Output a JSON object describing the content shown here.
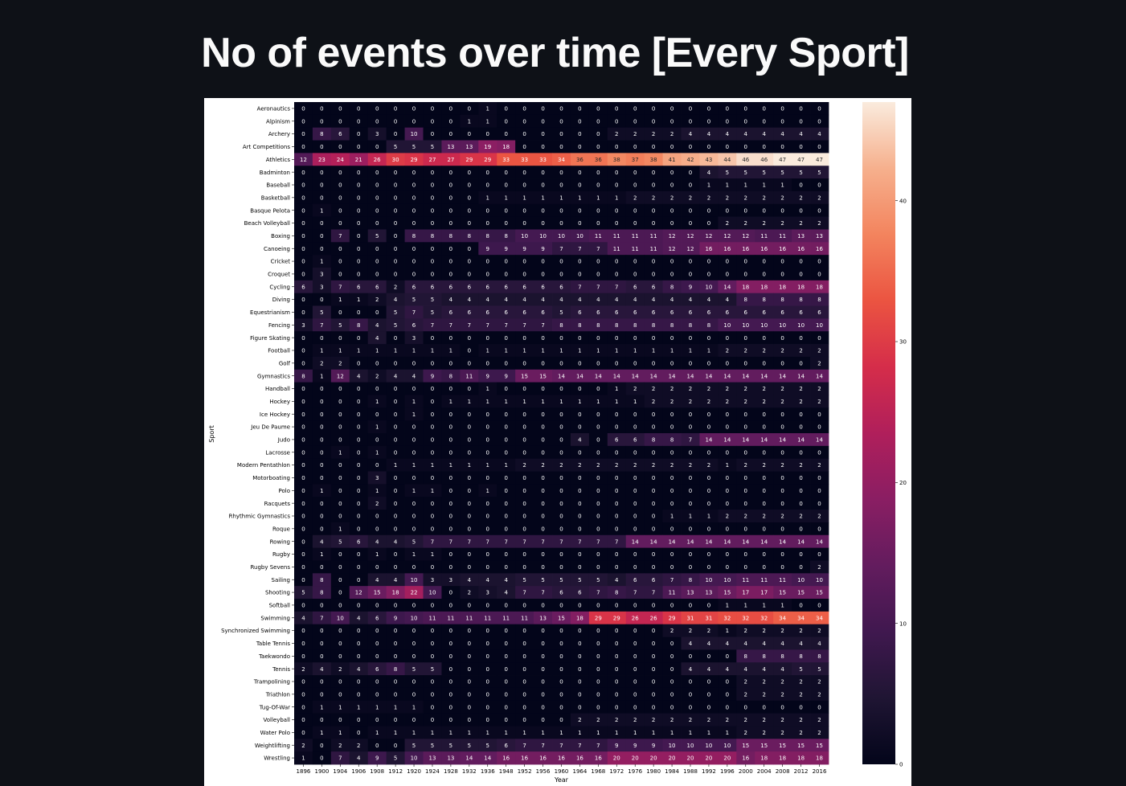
{
  "page": {
    "title": "No of events over time [Every Sport]"
  },
  "chart_data": {
    "type": "heatmap",
    "title": "",
    "xlabel": "Year",
    "ylabel": "Sport",
    "colormap": "rocket",
    "vmin": 0,
    "vmax": 47,
    "colorbar_ticks": [
      0,
      10,
      20,
      30,
      40
    ],
    "annotate": true,
    "x": [
      "1896",
      "1900",
      "1904",
      "1906",
      "1908",
      "1912",
      "1920",
      "1924",
      "1928",
      "1932",
      "1936",
      "1948",
      "1952",
      "1956",
      "1960",
      "1964",
      "1968",
      "1972",
      "1976",
      "1980",
      "1984",
      "1988",
      "1992",
      "1996",
      "2000",
      "2004",
      "2008",
      "2012",
      "2016"
    ],
    "y": [
      "Aeronautics",
      "Alpinism",
      "Archery",
      "Art Competitions",
      "Athletics",
      "Badminton",
      "Baseball",
      "Basketball",
      "Basque Pelota",
      "Beach Volleyball",
      "Boxing",
      "Canoeing",
      "Cricket",
      "Croquet",
      "Cycling",
      "Diving",
      "Equestrianism",
      "Fencing",
      "Figure Skating",
      "Football",
      "Golf",
      "Gymnastics",
      "Handball",
      "Hockey",
      "Ice Hockey",
      "Jeu De Paume",
      "Judo",
      "Lacrosse",
      "Modern Pentathlon",
      "Motorboating",
      "Polo",
      "Racquets",
      "Rhythmic Gymnastics",
      "Roque",
      "Rowing",
      "Rugby",
      "Rugby Sevens",
      "Sailing",
      "Shooting",
      "Softball",
      "Swimming",
      "Synchronized Swimming",
      "Table Tennis",
      "Taekwondo",
      "Tennis",
      "Trampolining",
      "Triathlon",
      "Tug-Of-War",
      "Volleyball",
      "Water Polo",
      "Weightlifting",
      "Wrestling"
    ],
    "values": [
      [
        0,
        0,
        0,
        0,
        0,
        0,
        0,
        0,
        0,
        0,
        1,
        0,
        0,
        0,
        0,
        0,
        0,
        0,
        0,
        0,
        0,
        0,
        0,
        0,
        0,
        0,
        0,
        0,
        0
      ],
      [
        0,
        0,
        0,
        0,
        0,
        0,
        0,
        0,
        0,
        1,
        1,
        0,
        0,
        0,
        0,
        0,
        0,
        0,
        0,
        0,
        0,
        0,
        0,
        0,
        0,
        0,
        0,
        0,
        0
      ],
      [
        0,
        8,
        6,
        0,
        3,
        0,
        10,
        0,
        0,
        0,
        0,
        0,
        0,
        0,
        0,
        0,
        0,
        2,
        2,
        2,
        2,
        4,
        4,
        4,
        4,
        4,
        4,
        4,
        4
      ],
      [
        0,
        0,
        0,
        0,
        0,
        5,
        5,
        5,
        13,
        13,
        19,
        18,
        0,
        0,
        0,
        0,
        0,
        0,
        0,
        0,
        0,
        0,
        0,
        0,
        0,
        0,
        0,
        0,
        0
      ],
      [
        12,
        23,
        24,
        21,
        26,
        30,
        29,
        27,
        27,
        29,
        29,
        33,
        33,
        33,
        34,
        36,
        36,
        38,
        37,
        38,
        41,
        42,
        43,
        44,
        46,
        46,
        47,
        47,
        47
      ],
      [
        0,
        0,
        0,
        0,
        0,
        0,
        0,
        0,
        0,
        0,
        0,
        0,
        0,
        0,
        0,
        0,
        0,
        0,
        0,
        0,
        0,
        0,
        4,
        5,
        5,
        5,
        5,
        5,
        5
      ],
      [
        0,
        0,
        0,
        0,
        0,
        0,
        0,
        0,
        0,
        0,
        0,
        0,
        0,
        0,
        0,
        0,
        0,
        0,
        0,
        0,
        0,
        0,
        1,
        1,
        1,
        1,
        1,
        0,
        0
      ],
      [
        0,
        0,
        0,
        0,
        0,
        0,
        0,
        0,
        0,
        0,
        1,
        1,
        1,
        1,
        1,
        1,
        1,
        1,
        2,
        2,
        2,
        2,
        2,
        2,
        2,
        2,
        2,
        2,
        2
      ],
      [
        0,
        1,
        0,
        0,
        0,
        0,
        0,
        0,
        0,
        0,
        0,
        0,
        0,
        0,
        0,
        0,
        0,
        0,
        0,
        0,
        0,
        0,
        0,
        0,
        0,
        0,
        0,
        0,
        0
      ],
      [
        0,
        0,
        0,
        0,
        0,
        0,
        0,
        0,
        0,
        0,
        0,
        0,
        0,
        0,
        0,
        0,
        0,
        0,
        0,
        0,
        0,
        0,
        0,
        2,
        2,
        2,
        2,
        2,
        2
      ],
      [
        0,
        0,
        7,
        0,
        5,
        0,
        8,
        8,
        8,
        8,
        8,
        8,
        10,
        10,
        10,
        10,
        11,
        11,
        11,
        11,
        12,
        12,
        12,
        12,
        12,
        11,
        11,
        13,
        13
      ],
      [
        0,
        0,
        0,
        0,
        0,
        0,
        0,
        0,
        0,
        0,
        9,
        9,
        9,
        9,
        7,
        7,
        7,
        11,
        11,
        11,
        12,
        12,
        16,
        16,
        16,
        16,
        16,
        16,
        16
      ],
      [
        0,
        1,
        0,
        0,
        0,
        0,
        0,
        0,
        0,
        0,
        0,
        0,
        0,
        0,
        0,
        0,
        0,
        0,
        0,
        0,
        0,
        0,
        0,
        0,
        0,
        0,
        0,
        0,
        0
      ],
      [
        0,
        3,
        0,
        0,
        0,
        0,
        0,
        0,
        0,
        0,
        0,
        0,
        0,
        0,
        0,
        0,
        0,
        0,
        0,
        0,
        0,
        0,
        0,
        0,
        0,
        0,
        0,
        0,
        0
      ],
      [
        6,
        3,
        7,
        6,
        6,
        2,
        6,
        6,
        6,
        6,
        6,
        6,
        6,
        6,
        6,
        7,
        7,
        7,
        6,
        6,
        8,
        9,
        10,
        14,
        18,
        18,
        18,
        18,
        18
      ],
      [
        0,
        0,
        1,
        1,
        2,
        4,
        5,
        5,
        4,
        4,
        4,
        4,
        4,
        4,
        4,
        4,
        4,
        4,
        4,
        4,
        4,
        4,
        4,
        4,
        8,
        8,
        8,
        8,
        8
      ],
      [
        0,
        5,
        0,
        0,
        0,
        5,
        7,
        5,
        6,
        6,
        6,
        6,
        6,
        6,
        5,
        6,
        6,
        6,
        6,
        6,
        6,
        6,
        6,
        6,
        6,
        6,
        6,
        6,
        6
      ],
      [
        3,
        7,
        5,
        8,
        4,
        5,
        6,
        7,
        7,
        7,
        7,
        7,
        7,
        7,
        8,
        8,
        8,
        8,
        8,
        8,
        8,
        8,
        8,
        10,
        10,
        10,
        10,
        10,
        10
      ],
      [
        0,
        0,
        0,
        0,
        4,
        0,
        3,
        0,
        0,
        0,
        0,
        0,
        0,
        0,
        0,
        0,
        0,
        0,
        0,
        0,
        0,
        0,
        0,
        0,
        0,
        0,
        0,
        0,
        0
      ],
      [
        0,
        1,
        1,
        1,
        1,
        1,
        1,
        1,
        1,
        0,
        1,
        1,
        1,
        1,
        1,
        1,
        1,
        1,
        1,
        1,
        1,
        1,
        1,
        2,
        2,
        2,
        2,
        2,
        2
      ],
      [
        0,
        2,
        2,
        0,
        0,
        0,
        0,
        0,
        0,
        0,
        0,
        0,
        0,
        0,
        0,
        0,
        0,
        0,
        0,
        0,
        0,
        0,
        0,
        0,
        0,
        0,
        0,
        0,
        2
      ],
      [
        8,
        1,
        12,
        4,
        2,
        4,
        4,
        9,
        8,
        11,
        9,
        9,
        15,
        15,
        14,
        14,
        14,
        14,
        14,
        14,
        14,
        14,
        14,
        14,
        14,
        14,
        14,
        14,
        14
      ],
      [
        0,
        0,
        0,
        0,
        0,
        0,
        0,
        0,
        0,
        0,
        1,
        0,
        0,
        0,
        0,
        0,
        0,
        1,
        2,
        2,
        2,
        2,
        2,
        2,
        2,
        2,
        2,
        2,
        2
      ],
      [
        0,
        0,
        0,
        0,
        1,
        0,
        1,
        0,
        1,
        1,
        1,
        1,
        1,
        1,
        1,
        1,
        1,
        1,
        1,
        2,
        2,
        2,
        2,
        2,
        2,
        2,
        2,
        2,
        2
      ],
      [
        0,
        0,
        0,
        0,
        0,
        0,
        1,
        0,
        0,
        0,
        0,
        0,
        0,
        0,
        0,
        0,
        0,
        0,
        0,
        0,
        0,
        0,
        0,
        0,
        0,
        0,
        0,
        0,
        0
      ],
      [
        0,
        0,
        0,
        0,
        1,
        0,
        0,
        0,
        0,
        0,
        0,
        0,
        0,
        0,
        0,
        0,
        0,
        0,
        0,
        0,
        0,
        0,
        0,
        0,
        0,
        0,
        0,
        0,
        0
      ],
      [
        0,
        0,
        0,
        0,
        0,
        0,
        0,
        0,
        0,
        0,
        0,
        0,
        0,
        0,
        0,
        4,
        0,
        6,
        6,
        8,
        8,
        7,
        14,
        14,
        14,
        14,
        14,
        14,
        14
      ],
      [
        0,
        0,
        1,
        0,
        1,
        0,
        0,
        0,
        0,
        0,
        0,
        0,
        0,
        0,
        0,
        0,
        0,
        0,
        0,
        0,
        0,
        0,
        0,
        0,
        0,
        0,
        0,
        0,
        0
      ],
      [
        0,
        0,
        0,
        0,
        0,
        1,
        1,
        1,
        1,
        1,
        1,
        1,
        2,
        2,
        2,
        2,
        2,
        2,
        2,
        2,
        2,
        2,
        2,
        1,
        2,
        2,
        2,
        2,
        2
      ],
      [
        0,
        0,
        0,
        0,
        3,
        0,
        0,
        0,
        0,
        0,
        0,
        0,
        0,
        0,
        0,
        0,
        0,
        0,
        0,
        0,
        0,
        0,
        0,
        0,
        0,
        0,
        0,
        0,
        0
      ],
      [
        0,
        1,
        0,
        0,
        1,
        0,
        1,
        1,
        0,
        0,
        1,
        0,
        0,
        0,
        0,
        0,
        0,
        0,
        0,
        0,
        0,
        0,
        0,
        0,
        0,
        0,
        0,
        0,
        0
      ],
      [
        0,
        0,
        0,
        0,
        2,
        0,
        0,
        0,
        0,
        0,
        0,
        0,
        0,
        0,
        0,
        0,
        0,
        0,
        0,
        0,
        0,
        0,
        0,
        0,
        0,
        0,
        0,
        0,
        0
      ],
      [
        0,
        0,
        0,
        0,
        0,
        0,
        0,
        0,
        0,
        0,
        0,
        0,
        0,
        0,
        0,
        0,
        0,
        0,
        0,
        0,
        1,
        1,
        1,
        2,
        2,
        2,
        2,
        2,
        2
      ],
      [
        0,
        0,
        1,
        0,
        0,
        0,
        0,
        0,
        0,
        0,
        0,
        0,
        0,
        0,
        0,
        0,
        0,
        0,
        0,
        0,
        0,
        0,
        0,
        0,
        0,
        0,
        0,
        0,
        0
      ],
      [
        0,
        4,
        5,
        6,
        4,
        4,
        5,
        7,
        7,
        7,
        7,
        7,
        7,
        7,
        7,
        7,
        7,
        7,
        14,
        14,
        14,
        14,
        14,
        14,
        14,
        14,
        14,
        14,
        14
      ],
      [
        0,
        1,
        0,
        0,
        1,
        0,
        1,
        1,
        0,
        0,
        0,
        0,
        0,
        0,
        0,
        0,
        0,
        0,
        0,
        0,
        0,
        0,
        0,
        0,
        0,
        0,
        0,
        0,
        0
      ],
      [
        0,
        0,
        0,
        0,
        0,
        0,
        0,
        0,
        0,
        0,
        0,
        0,
        0,
        0,
        0,
        0,
        0,
        0,
        0,
        0,
        0,
        0,
        0,
        0,
        0,
        0,
        0,
        0,
        2
      ],
      [
        0,
        8,
        0,
        0,
        4,
        4,
        10,
        3,
        3,
        4,
        4,
        4,
        5,
        5,
        5,
        5,
        5,
        4,
        6,
        6,
        7,
        8,
        10,
        10,
        11,
        11,
        11,
        10,
        10
      ],
      [
        5,
        8,
        0,
        12,
        15,
        18,
        22,
        10,
        0,
        2,
        3,
        4,
        7,
        7,
        6,
        6,
        7,
        8,
        7,
        7,
        11,
        13,
        13,
        15,
        17,
        17,
        15,
        15,
        15
      ],
      [
        0,
        0,
        0,
        0,
        0,
        0,
        0,
        0,
        0,
        0,
        0,
        0,
        0,
        0,
        0,
        0,
        0,
        0,
        0,
        0,
        0,
        0,
        0,
        1,
        1,
        1,
        1,
        0,
        0
      ],
      [
        4,
        7,
        10,
        4,
        6,
        9,
        10,
        11,
        11,
        11,
        11,
        11,
        11,
        13,
        15,
        18,
        29,
        29,
        26,
        26,
        29,
        31,
        31,
        32,
        32,
        32,
        34,
        34,
        34
      ],
      [
        0,
        0,
        0,
        0,
        0,
        0,
        0,
        0,
        0,
        0,
        0,
        0,
        0,
        0,
        0,
        0,
        0,
        0,
        0,
        0,
        2,
        2,
        2,
        1,
        2,
        2,
        2,
        2,
        2
      ],
      [
        0,
        0,
        0,
        0,
        0,
        0,
        0,
        0,
        0,
        0,
        0,
        0,
        0,
        0,
        0,
        0,
        0,
        0,
        0,
        0,
        0,
        4,
        4,
        4,
        4,
        4,
        4,
        4,
        4
      ],
      [
        0,
        0,
        0,
        0,
        0,
        0,
        0,
        0,
        0,
        0,
        0,
        0,
        0,
        0,
        0,
        0,
        0,
        0,
        0,
        0,
        0,
        0,
        0,
        0,
        8,
        8,
        8,
        8,
        8
      ],
      [
        2,
        4,
        2,
        4,
        6,
        8,
        5,
        5,
        0,
        0,
        0,
        0,
        0,
        0,
        0,
        0,
        0,
        0,
        0,
        0,
        0,
        4,
        4,
        4,
        4,
        4,
        4,
        5,
        5
      ],
      [
        0,
        0,
        0,
        0,
        0,
        0,
        0,
        0,
        0,
        0,
        0,
        0,
        0,
        0,
        0,
        0,
        0,
        0,
        0,
        0,
        0,
        0,
        0,
        0,
        2,
        2,
        2,
        2,
        2
      ],
      [
        0,
        0,
        0,
        0,
        0,
        0,
        0,
        0,
        0,
        0,
        0,
        0,
        0,
        0,
        0,
        0,
        0,
        0,
        0,
        0,
        0,
        0,
        0,
        0,
        2,
        2,
        2,
        2,
        2
      ],
      [
        0,
        1,
        1,
        1,
        1,
        1,
        1,
        0,
        0,
        0,
        0,
        0,
        0,
        0,
        0,
        0,
        0,
        0,
        0,
        0,
        0,
        0,
        0,
        0,
        0,
        0,
        0,
        0,
        0
      ],
      [
        0,
        0,
        0,
        0,
        0,
        0,
        0,
        0,
        0,
        0,
        0,
        0,
        0,
        0,
        0,
        2,
        2,
        2,
        2,
        2,
        2,
        2,
        2,
        2,
        2,
        2,
        2,
        2,
        2
      ],
      [
        0,
        1,
        1,
        0,
        1,
        1,
        1,
        1,
        1,
        1,
        1,
        1,
        1,
        1,
        1,
        1,
        1,
        1,
        1,
        1,
        1,
        1,
        1,
        1,
        2,
        2,
        2,
        2,
        2
      ],
      [
        2,
        0,
        2,
        2,
        0,
        0,
        5,
        5,
        5,
        5,
        5,
        6,
        7,
        7,
        7,
        7,
        7,
        9,
        9,
        9,
        10,
        10,
        10,
        10,
        15,
        15,
        15,
        15,
        15
      ],
      [
        1,
        0,
        7,
        4,
        9,
        5,
        10,
        13,
        13,
        14,
        14,
        16,
        16,
        16,
        16,
        16,
        16,
        20,
        20,
        20,
        20,
        20,
        20,
        20,
        16,
        18,
        18,
        18,
        18
      ]
    ]
  }
}
